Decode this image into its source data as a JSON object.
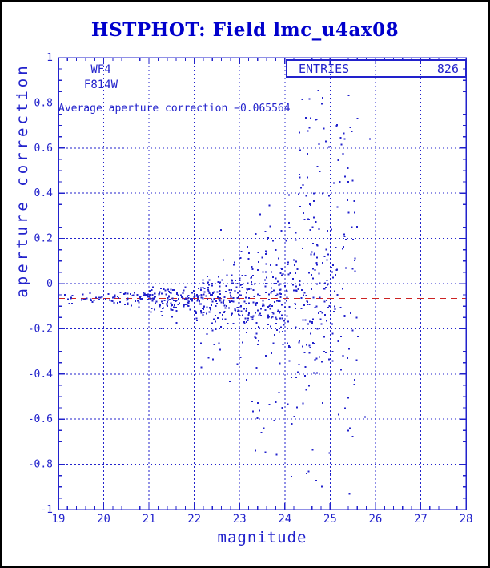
{
  "window": {
    "title": "HSTPHOT: Field lmc_u4ax08"
  },
  "colors": {
    "plot_blue": "#2222cc",
    "title_blue": "#0000cc",
    "avg_line_red": "#cc2222",
    "background": "#ffffff",
    "page_border": "#000000"
  },
  "labels": {
    "camera": "WF4",
    "filter": "F814W",
    "annotation": "Average aperture correction −0.065564",
    "entries_label": "ENTRIES",
    "entries_value": "826",
    "xlabel": "magnitude",
    "ylabel": "aperture correction"
  },
  "chart_data": {
    "type": "scatter",
    "title": "HSTPHOT: Field lmc_u4ax08",
    "xlabel": "magnitude",
    "ylabel": "aperture correction",
    "xlim": [
      19,
      28
    ],
    "ylim": [
      -1,
      1
    ],
    "grid": "dotted at x majors (1 mag) and y majors (0.2)",
    "legend": "ENTRIES 826 box, top right inside plot",
    "x_minor_step": 0.2,
    "y_minor_step": 0.05,
    "entries": 826,
    "average_aperture_correction": -0.065564,
    "average_line_y": -0.065564,
    "x_ticks": [
      {
        "v": 19,
        "label": "19"
      },
      {
        "v": 20,
        "label": "20"
      },
      {
        "v": 21,
        "label": "21"
      },
      {
        "v": 22,
        "label": "22"
      },
      {
        "v": 23,
        "label": "23"
      },
      {
        "v": 24,
        "label": "24"
      },
      {
        "v": 25,
        "label": "25"
      },
      {
        "v": 26,
        "label": "26"
      },
      {
        "v": 27,
        "label": "27"
      },
      {
        "v": 28,
        "label": "28"
      }
    ],
    "y_ticks": [
      {
        "v": 1,
        "label": "1"
      },
      {
        "v": 0.8,
        "label": "0.8"
      },
      {
        "v": 0.6,
        "label": "0.6"
      },
      {
        "v": 0.4,
        "label": "0.4"
      },
      {
        "v": 0.2,
        "label": "0.2"
      },
      {
        "v": 0,
        "label": "0"
      },
      {
        "v": -0.2,
        "label": "-0.2"
      },
      {
        "v": -0.4,
        "label": "-0.4"
      },
      {
        "v": -0.6,
        "label": "-0.6"
      },
      {
        "v": -0.8,
        "label": "-0.8"
      },
      {
        "v": -1,
        "label": "-1"
      }
    ],
    "seed": 20,
    "point_bins": [
      {
        "x0": 19.0,
        "x1": 20.0,
        "n": 25,
        "mean": -0.068,
        "sigma": 0.012,
        "tails": []
      },
      {
        "x0": 20.0,
        "x1": 21.0,
        "n": 55,
        "mean": -0.068,
        "sigma": 0.016,
        "tails": []
      },
      {
        "x0": 21.0,
        "x1": 22.0,
        "n": 106,
        "mean": -0.07,
        "sigma": 0.026,
        "tails": [
          {
            "n": 4,
            "lo": -0.22,
            "hi": -0.13,
            "xbias": 0.2
          }
        ]
      },
      {
        "x0": 22.0,
        "x1": 23.0,
        "n": 146,
        "mean": -0.072,
        "sigma": 0.05,
        "tails": [
          {
            "n": 10,
            "lo": -0.45,
            "hi": -0.16,
            "xbias": 0.1
          },
          {
            "n": 4,
            "lo": 0.06,
            "hi": 0.33,
            "xbias": 0.5
          }
        ]
      },
      {
        "x0": 23.0,
        "x1": 24.0,
        "n": 167,
        "mean": -0.07,
        "sigma": 0.095,
        "tails": [
          {
            "n": 18,
            "lo": -0.76,
            "hi": -0.25,
            "xbias": 0.15
          },
          {
            "n": 12,
            "lo": 0.1,
            "hi": 0.36,
            "xbias": 0.35
          }
        ]
      },
      {
        "x0": 24.0,
        "x1": 25.0,
        "n": 140,
        "mean": -0.04,
        "sigma": 0.17,
        "tails": [
          {
            "n": 16,
            "lo": -0.9,
            "hi": -0.3,
            "xbias": 0.1
          },
          {
            "n": 36,
            "lo": 0.15,
            "hi": 0.85,
            "xbias": 0.3
          }
        ]
      },
      {
        "x0": 25.0,
        "x1": 25.65,
        "n": 55,
        "mean": 0.0,
        "sigma": 0.26,
        "tails": [
          {
            "n": 6,
            "lo": -0.6,
            "hi": -0.33,
            "xbias": 0
          },
          {
            "n": 10,
            "lo": 0.3,
            "hi": 0.78,
            "xbias": 0
          }
        ]
      }
    ],
    "extra_points": [
      [
        24.74,
        0.855
      ],
      [
        25.6,
        0.73
      ],
      [
        25.88,
        0.64
      ],
      [
        25.3,
        0.665
      ],
      [
        25.32,
        0.64
      ],
      [
        25.29,
        0.575
      ],
      [
        25.4,
        0.45
      ],
      [
        25.28,
        0.155
      ],
      [
        25.77,
        -0.59
      ],
      [
        25.43,
        -0.93
      ],
      [
        24.48,
        -0.84
      ],
      [
        25.01,
        -0.84
      ],
      [
        23.35,
        -0.74
      ],
      [
        23.48,
        -0.66
      ],
      [
        23.3,
        -0.565
      ],
      [
        24.15,
        -0.62
      ]
    ]
  }
}
